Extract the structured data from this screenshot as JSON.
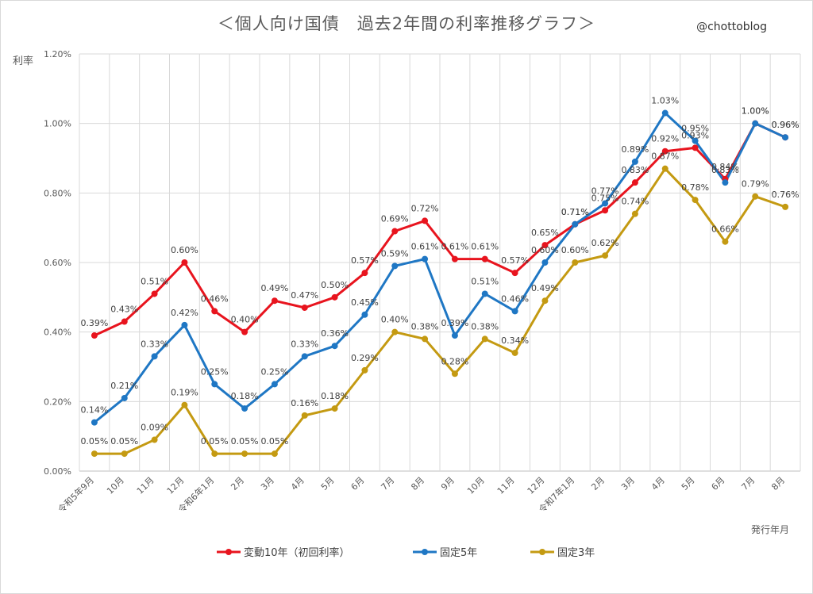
{
  "title": "＜個人向け国債　過去2年間の利率推移グラフ＞",
  "credit": "@chottoblog",
  "chart_data": {
    "type": "line",
    "ylabel": "利率",
    "xlabel": "発行年月",
    "ylim": [
      0,
      1.2
    ],
    "yticks": [
      "0.00%",
      "0.20%",
      "0.40%",
      "0.60%",
      "0.80%",
      "1.00%",
      "1.20%"
    ],
    "categories": [
      "令和5年9月",
      "10月",
      "11月",
      "12月",
      "令和6年1月",
      "2月",
      "3月",
      "4月",
      "5月",
      "6月",
      "7月",
      "8月",
      "9月",
      "10月",
      "11月",
      "12月",
      "令和7年1月",
      "2月",
      "3月",
      "4月",
      "5月",
      "6月",
      "7月",
      "8月"
    ],
    "series": [
      {
        "name": "変動10年（初回利率）",
        "color": "#e8141e",
        "values": [
          0.39,
          0.43,
          0.51,
          0.6,
          0.46,
          0.4,
          0.49,
          0.47,
          0.5,
          0.57,
          0.69,
          0.72,
          0.61,
          0.61,
          0.57,
          0.65,
          0.71,
          0.75,
          0.83,
          0.92,
          0.93,
          0.84,
          1.0,
          0.96
        ]
      },
      {
        "name": "固定5年",
        "color": "#1f77c4",
        "values": [
          0.14,
          0.21,
          0.33,
          0.42,
          0.25,
          0.18,
          0.25,
          0.33,
          0.36,
          0.45,
          0.59,
          0.61,
          0.39,
          0.51,
          0.46,
          0.6,
          0.71,
          0.77,
          0.89,
          1.03,
          0.95,
          0.83,
          1.0,
          0.96
        ]
      },
      {
        "name": "固定3年",
        "color": "#c49a12",
        "values": [
          0.05,
          0.05,
          0.09,
          0.19,
          0.05,
          0.05,
          0.05,
          0.16,
          0.18,
          0.29,
          0.4,
          0.38,
          0.28,
          0.38,
          0.34,
          0.49,
          0.6,
          0.62,
          0.74,
          0.87,
          0.78,
          0.66,
          0.79,
          0.76
        ]
      }
    ],
    "legend_position": "bottom",
    "grid": true
  }
}
